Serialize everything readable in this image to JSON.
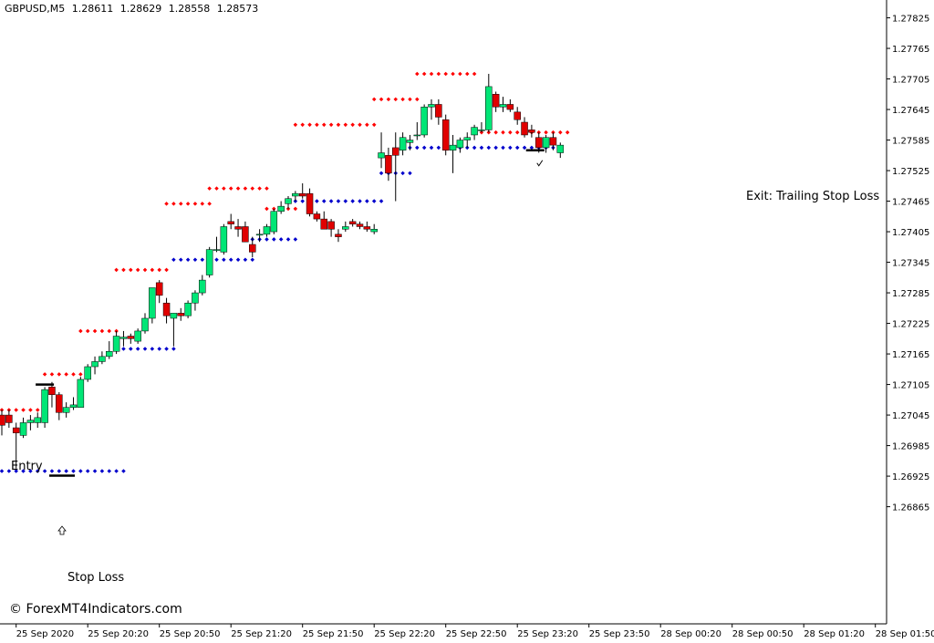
{
  "header": {
    "symbol": "GBPUSD,M5",
    "open": "1.28611",
    "high": "1.28629",
    "low": "1.28558",
    "close": "1.28573"
  },
  "annotations": {
    "entry": "Entry",
    "stop_loss": "Stop Loss",
    "exit": "Exit: Trailing Stop Loss"
  },
  "copyright": "© ForexMT4Indicators.com",
  "colors": {
    "bull": "#00e676",
    "bear": "#e00000",
    "upper_dots": "#ff0000",
    "lower_dots": "#0000cc",
    "axis": "#000000"
  },
  "chart_data": {
    "type": "candlestick",
    "ylim": [
      1.26635,
      1.2786
    ],
    "y_ticks": [
      "1.27825",
      "1.27765",
      "1.27705",
      "1.27645",
      "1.27585",
      "1.27525",
      "1.27465",
      "1.27405",
      "1.27345",
      "1.27285",
      "1.27225",
      "1.27165",
      "1.27105",
      "1.27045",
      "1.26985",
      "1.26925",
      "1.26865"
    ],
    "x_ticks": [
      {
        "index": 2,
        "label": "25 Sep 2020"
      },
      {
        "index": 12,
        "label": "25 Sep 20:20"
      },
      {
        "index": 22,
        "label": "25 Sep 20:50"
      },
      {
        "index": 32,
        "label": "25 Sep 21:20"
      },
      {
        "index": 42,
        "label": "25 Sep 21:50"
      },
      {
        "index": 52,
        "label": "25 Sep 22:20"
      },
      {
        "index": 62,
        "label": "25 Sep 22:50"
      },
      {
        "index": 72,
        "label": "25 Sep 23:20"
      },
      {
        "index": 82,
        "label": "25 Sep 23:50"
      },
      {
        "index": 92,
        "label": "28 Sep 00:20"
      },
      {
        "index": 102,
        "label": "28 Sep 00:50"
      },
      {
        "index": 112,
        "label": "28 Sep 01:20"
      },
      {
        "index": 122,
        "label": "28 Sep 01:50"
      }
    ],
    "candles": [
      [
        1.27045,
        1.27055,
        1.27005,
        1.27025
      ],
      [
        1.27045,
        1.27055,
        1.2702,
        1.2703
      ],
      [
        1.2702,
        1.2703,
        1.2694,
        1.2701
      ],
      [
        1.27005,
        1.2704,
        1.27,
        1.2703
      ],
      [
        1.2703,
        1.27045,
        1.27015,
        1.27035
      ],
      [
        1.2703,
        1.2705,
        1.2702,
        1.2704
      ],
      [
        1.2703,
        1.271,
        1.2702,
        1.27095
      ],
      [
        1.271,
        1.2711,
        1.2706,
        1.27085
      ],
      [
        1.27085,
        1.2709,
        1.27035,
        1.2705
      ],
      [
        1.2705,
        1.2707,
        1.2704,
        1.2706
      ],
      [
        1.2706,
        1.2708,
        1.27055,
        1.27065
      ],
      [
        1.2706,
        1.2712,
        1.2706,
        1.27115
      ],
      [
        1.27115,
        1.27145,
        1.2711,
        1.2714
      ],
      [
        1.2714,
        1.2716,
        1.27125,
        1.2715
      ],
      [
        1.2715,
        1.2717,
        1.27145,
        1.2716
      ],
      [
        1.2716,
        1.2719,
        1.27155,
        1.2717
      ],
      [
        1.2717,
        1.2721,
        1.27165,
        1.272
      ],
      [
        1.27195,
        1.2721,
        1.2718,
        1.27198
      ],
      [
        1.272,
        1.27205,
        1.27185,
        1.27195
      ],
      [
        1.2719,
        1.27215,
        1.27185,
        1.2721
      ],
      [
        1.2721,
        1.27245,
        1.27205,
        1.27235
      ],
      [
        1.27235,
        1.27295,
        1.27225,
        1.27295
      ],
      [
        1.27305,
        1.2731,
        1.27265,
        1.2728
      ],
      [
        1.27265,
        1.27275,
        1.27225,
        1.2724
      ],
      [
        1.27235,
        1.27245,
        1.2718,
        1.27245
      ],
      [
        1.27245,
        1.27255,
        1.2723,
        1.2724
      ],
      [
        1.2724,
        1.2727,
        1.27235,
        1.27265
      ],
      [
        1.27265,
        1.2729,
        1.2725,
        1.27285
      ],
      [
        1.27285,
        1.2732,
        1.2728,
        1.2731
      ],
      [
        1.2732,
        1.27375,
        1.27315,
        1.2737
      ],
      [
        1.2737,
        1.27395,
        1.27365,
        1.2737
      ],
      [
        1.27365,
        1.2742,
        1.2736,
        1.27415
      ],
      [
        1.27425,
        1.2744,
        1.2741,
        1.2742
      ],
      [
        1.27415,
        1.2743,
        1.27395,
        1.2741
      ],
      [
        1.27415,
        1.27425,
        1.27385,
        1.27385
      ],
      [
        1.2738,
        1.27395,
        1.27355,
        1.27365
      ],
      [
        1.274,
        1.2741,
        1.27385,
        1.274
      ],
      [
        1.274,
        1.2742,
        1.27395,
        1.27415
      ],
      [
        1.27405,
        1.2745,
        1.274,
        1.27445
      ],
      [
        1.27445,
        1.27465,
        1.2744,
        1.27455
      ],
      [
        1.2746,
        1.27475,
        1.2745,
        1.2747
      ],
      [
        1.27475,
        1.27485,
        1.27465,
        1.2748
      ],
      [
        1.2748,
        1.275,
        1.2747,
        1.27475
      ],
      [
        1.2748,
        1.2749,
        1.27435,
        1.2744
      ],
      [
        1.2744,
        1.27445,
        1.27425,
        1.2743
      ],
      [
        1.2743,
        1.27445,
        1.2742,
        1.2741
      ],
      [
        1.27425,
        1.2743,
        1.27395,
        1.2741
      ],
      [
        1.274,
        1.2741,
        1.27385,
        1.27395
      ],
      [
        1.2741,
        1.27425,
        1.27405,
        1.27415
      ],
      [
        1.27425,
        1.2743,
        1.27415,
        1.2742
      ],
      [
        1.2742,
        1.27425,
        1.2741,
        1.27415
      ],
      [
        1.27415,
        1.27425,
        1.27405,
        1.2741
      ],
      [
        1.27405,
        1.2742,
        1.274,
        1.2741
      ],
      [
        1.2755,
        1.276,
        1.2753,
        1.2756
      ],
      [
        1.27555,
        1.2757,
        1.27505,
        1.2752
      ],
      [
        1.2757,
        1.276,
        1.27465,
        1.27555
      ],
      [
        1.27565,
        1.276,
        1.27555,
        1.2759
      ],
      [
        1.2758,
        1.27595,
        1.27565,
        1.27585
      ],
      [
        1.27595,
        1.2762,
        1.27585,
        1.27595
      ],
      [
        1.27595,
        1.27655,
        1.2759,
        1.2765
      ],
      [
        1.2765,
        1.27665,
        1.27625,
        1.27655
      ],
      [
        1.27655,
        1.27665,
        1.27615,
        1.2763
      ],
      [
        1.27625,
        1.27635,
        1.27555,
        1.27565
      ],
      [
        1.27565,
        1.27595,
        1.2752,
        1.27575
      ],
      [
        1.2757,
        1.2759,
        1.2756,
        1.27585
      ],
      [
        1.27585,
        1.276,
        1.2757,
        1.2759
      ],
      [
        1.27595,
        1.27615,
        1.27585,
        1.2761
      ],
      [
        1.27605,
        1.2762,
        1.276,
        1.27605
      ],
      [
        1.27605,
        1.27715,
        1.276,
        1.2769
      ],
      [
        1.27675,
        1.2768,
        1.2764,
        1.2765
      ],
      [
        1.2765,
        1.2767,
        1.2764,
        1.27655
      ],
      [
        1.27655,
        1.27665,
        1.2764,
        1.27645
      ],
      [
        1.2764,
        1.2765,
        1.27615,
        1.27625
      ],
      [
        1.2762,
        1.2763,
        1.2759,
        1.27595
      ],
      [
        1.27605,
        1.27615,
        1.2759,
        1.276
      ],
      [
        1.2759,
        1.276,
        1.2756,
        1.2757
      ],
      [
        1.2757,
        1.27595,
        1.2756,
        1.2759
      ],
      [
        1.2759,
        1.276,
        1.27565,
        1.27575
      ],
      [
        1.2756,
        1.2758,
        1.2755,
        1.27575
      ]
    ],
    "upper_dots": [
      [
        0,
        6,
        1.27055
      ],
      [
        6,
        11,
        1.27125
      ],
      [
        11,
        16,
        1.2721
      ],
      [
        16,
        23,
        1.2733
      ],
      [
        23,
        29,
        1.2746
      ],
      [
        29,
        37,
        1.2749
      ],
      [
        37,
        41,
        1.2745
      ],
      [
        41,
        52,
        1.27615
      ],
      [
        52,
        58,
        1.27665
      ],
      [
        58,
        66,
        1.27715
      ],
      [
        66,
        79,
        1.276
      ]
    ],
    "lower_dots": [
      [
        0,
        17,
        1.26935
      ],
      [
        17,
        24,
        1.27175
      ],
      [
        24,
        35,
        1.2735
      ],
      [
        35,
        41,
        1.2739
      ],
      [
        41,
        53,
        1.27465
      ],
      [
        53,
        57,
        1.2752
      ],
      [
        57,
        78,
        1.2757
      ]
    ],
    "entry_index": 6,
    "entry_price": 1.27105,
    "stop_loss_price": 1.26935,
    "exit_index": 75,
    "exit_price": 1.27565
  }
}
